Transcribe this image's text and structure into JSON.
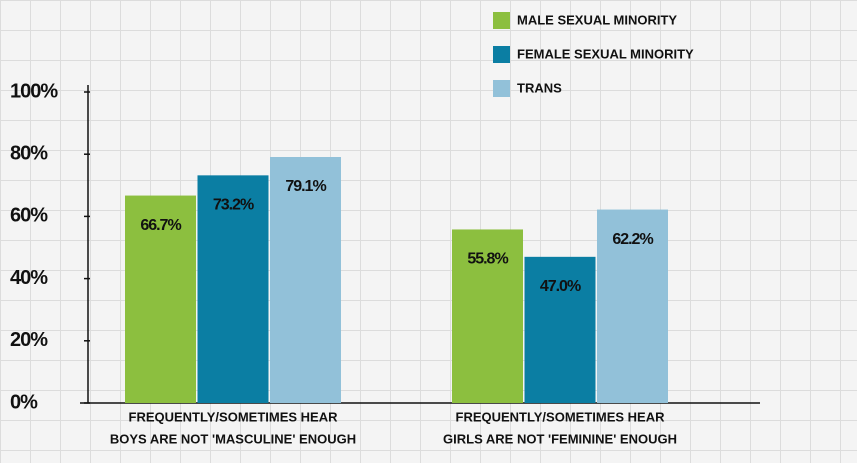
{
  "chart_data": {
    "type": "bar",
    "categories": [
      [
        "FREQUENTLY/SOMETIMES HEAR",
        "BOYS ARE NOT 'MASCULINE' ENOUGH"
      ],
      [
        "FREQUENTLY/SOMETIMES HEAR",
        "GIRLS ARE NOT 'FEMININE' ENOUGH"
      ]
    ],
    "series": [
      {
        "name": "MALE SEXUAL MINORITY",
        "color": "#8cbf3f",
        "values": [
          66.7,
          55.8
        ],
        "value_labels": [
          "66.7%",
          "55.8%"
        ]
      },
      {
        "name": "FEMALE SEXUAL MINORITY",
        "color": "#0b7ea3",
        "values": [
          73.2,
          47.0
        ],
        "value_labels": [
          "73.2%",
          "47.0%"
        ]
      },
      {
        "name": "TRANS",
        "color": "#92c1d9",
        "values": [
          79.1,
          62.2
        ],
        "value_labels": [
          "79.1%",
          "62.2%"
        ]
      }
    ],
    "ylim": [
      0,
      100
    ],
    "yticks": [
      {
        "value": 0,
        "label": "0%"
      },
      {
        "value": 20,
        "label": "20%"
      },
      {
        "value": 40,
        "label": "40%"
      },
      {
        "value": 60,
        "label": "60%"
      },
      {
        "value": 80,
        "label": "80%"
      },
      {
        "value": 100,
        "label": "100%"
      }
    ],
    "legend": "top-right"
  }
}
